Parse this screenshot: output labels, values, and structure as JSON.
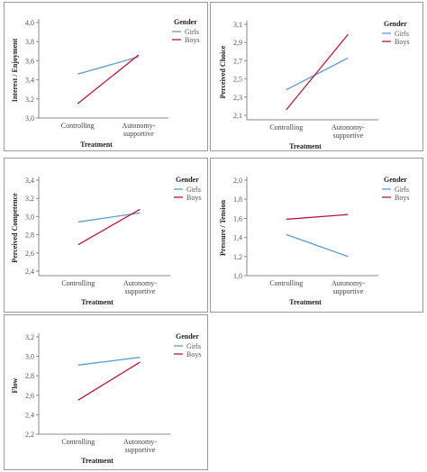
{
  "chart_data": [
    {
      "type": "line",
      "ylabel": "Interest / Enjoyment",
      "xlabel": "Treatment",
      "categories": [
        "Controlling",
        "Autonomy-\nsupportive"
      ],
      "y_ticks": [
        "3,0",
        "3,2",
        "3,4",
        "3,6",
        "3,8",
        "4,0"
      ],
      "ylim": [
        3.0,
        4.0
      ],
      "legend_title": "Gender",
      "legend_placement": "top-right",
      "series": [
        {
          "name": "Girls",
          "color": "#5b9bd5",
          "values": [
            3.46,
            3.64
          ]
        },
        {
          "name": "Boys",
          "color": "#c0143c",
          "values": [
            3.15,
            3.66
          ]
        }
      ]
    },
    {
      "type": "line",
      "ylabel": "Perceived Choice",
      "xlabel": "Treatment",
      "categories": [
        "Controlling",
        "Autonomy-\nsupportive"
      ],
      "y_ticks": [
        "2,1",
        "2,3",
        "2,5",
        "2,7",
        "2,9",
        "3,1"
      ],
      "ylim": [
        2.05,
        3.1
      ],
      "legend_title": "Gender",
      "legend_placement": "top-right",
      "series": [
        {
          "name": "Girls",
          "color": "#5b9bd5",
          "values": [
            2.38,
            2.73
          ]
        },
        {
          "name": "Boys",
          "color": "#c0143c",
          "values": [
            2.16,
            2.99
          ]
        }
      ]
    },
    {
      "type": "line",
      "ylabel": "Perceived Competence",
      "xlabel": "Treatment",
      "categories": [
        "Controlling",
        "Autonomy-\nsupportive"
      ],
      "y_ticks": [
        "2,4",
        "2,6",
        "2,8",
        "3,0",
        "3,2",
        "3,4"
      ],
      "ylim": [
        2.35,
        3.4
      ],
      "legend_title": "Gender",
      "legend_placement": "top-right",
      "series": [
        {
          "name": "Girls",
          "color": "#5b9bd5",
          "values": [
            2.94,
            3.04
          ]
        },
        {
          "name": "Boys",
          "color": "#c0143c",
          "values": [
            2.69,
            3.08
          ]
        }
      ]
    },
    {
      "type": "line",
      "ylabel": "Pressure / Tension",
      "xlabel": "Treatment",
      "categories": [
        "Controlling",
        "Autonomy-\nsupportive"
      ],
      "y_ticks": [
        "1,0",
        "1,2",
        "1,4",
        "1,6",
        "1,8",
        "2,0"
      ],
      "ylim": [
        1.0,
        2.0
      ],
      "legend_title": "Gender",
      "legend_placement": "top-right",
      "series": [
        {
          "name": "Girls",
          "color": "#5b9bd5",
          "values": [
            1.43,
            1.2
          ]
        },
        {
          "name": "Boys",
          "color": "#c0143c",
          "values": [
            1.59,
            1.64
          ]
        }
      ]
    },
    {
      "type": "line",
      "ylabel": "Flow",
      "xlabel": "Treatment",
      "categories": [
        "Controlling",
        "Autonomy-\nsupportive"
      ],
      "y_ticks": [
        "2,2",
        "2,4",
        "2,6",
        "2,8",
        "3,0",
        "3,2"
      ],
      "ylim": [
        2.2,
        3.2
      ],
      "legend_title": "Gender",
      "legend_placement": "top-right",
      "series": [
        {
          "name": "Girls",
          "color": "#5b9bd5",
          "values": [
            2.91,
            2.99
          ]
        },
        {
          "name": "Boys",
          "color": "#c0143c",
          "values": [
            2.55,
            2.94
          ]
        }
      ]
    }
  ]
}
